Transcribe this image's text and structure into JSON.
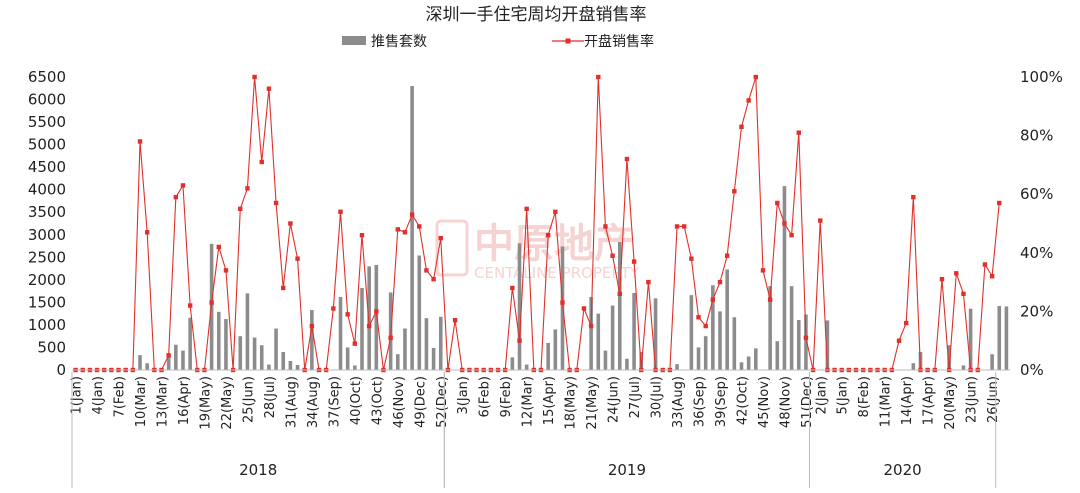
{
  "chart_data": {
    "type": "bar+line",
    "title": "深圳一手住宅周均开盘销售率",
    "watermark": {
      "cn": "中原地产",
      "en": "CENTALINE PROPERTY"
    },
    "bar_series": {
      "name": "推售套数",
      "color": "#8c8c8c"
    },
    "line_series": {
      "name": "开盘销售率",
      "color": "#e0302b"
    },
    "y_left": {
      "min": 0,
      "max": 6500,
      "ticks": [
        "0",
        "500",
        "1000",
        "1500",
        "2000",
        "2500",
        "3000",
        "3500",
        "4000",
        "4500",
        "5000",
        "5500",
        "6000",
        "6500"
      ]
    },
    "y_right": {
      "min": 0,
      "max": 1,
      "ticks": [
        "0%",
        "20%",
        "40%",
        "60%",
        "80%",
        "100%"
      ]
    },
    "years": [
      {
        "label": "2018",
        "start": 0,
        "end": 52
      },
      {
        "label": "2019",
        "start": 52,
        "end": 103
      },
      {
        "label": "2020",
        "start": 103,
        "end": 129
      }
    ],
    "x_tick_labels": [
      {
        "i": 0,
        "label": "1(Jan)"
      },
      {
        "i": 3,
        "label": "4(Jan)"
      },
      {
        "i": 6,
        "label": "7(Feb)"
      },
      {
        "i": 9,
        "label": "10(Mar)"
      },
      {
        "i": 12,
        "label": "13(Mar)"
      },
      {
        "i": 15,
        "label": "16(Apr)"
      },
      {
        "i": 18,
        "label": "19(May)"
      },
      {
        "i": 21,
        "label": "22(May)"
      },
      {
        "i": 24,
        "label": "25(Jun)"
      },
      {
        "i": 27,
        "label": "28(Jul)"
      },
      {
        "i": 30,
        "label": "31(Aug)"
      },
      {
        "i": 33,
        "label": "34(Aug)"
      },
      {
        "i": 36,
        "label": "37(Sep)"
      },
      {
        "i": 39,
        "label": "40(Oct)"
      },
      {
        "i": 42,
        "label": "43(Oct)"
      },
      {
        "i": 45,
        "label": "46(Nov)"
      },
      {
        "i": 48,
        "label": "49(Dec)"
      },
      {
        "i": 51,
        "label": "52(Dec)"
      },
      {
        "i": 54,
        "label": "3(Jan)"
      },
      {
        "i": 57,
        "label": "6(Feb)"
      },
      {
        "i": 60,
        "label": "9(Feb)"
      },
      {
        "i": 63,
        "label": "12(Mar)"
      },
      {
        "i": 66,
        "label": "15(Apr)"
      },
      {
        "i": 69,
        "label": "18(May)"
      },
      {
        "i": 72,
        "label": "21(May)"
      },
      {
        "i": 75,
        "label": "24(Jun)"
      },
      {
        "i": 78,
        "label": "27(Jul)"
      },
      {
        "i": 81,
        "label": "30(Jul)"
      },
      {
        "i": 84,
        "label": "33(Aug)"
      },
      {
        "i": 87,
        "label": "36(Sep)"
      },
      {
        "i": 90,
        "label": "39(Sep)"
      },
      {
        "i": 93,
        "label": "42(Oct)"
      },
      {
        "i": 96,
        "label": "45(Nov)"
      },
      {
        "i": 99,
        "label": "48(Nov)"
      },
      {
        "i": 102,
        "label": "51(Dec)"
      },
      {
        "i": 104,
        "label": "2(Jan)"
      },
      {
        "i": 107,
        "label": "5(Jan)"
      },
      {
        "i": 110,
        "label": "8(Feb)"
      },
      {
        "i": 113,
        "label": "11(Mar)"
      },
      {
        "i": 116,
        "label": "14(Apr)"
      },
      {
        "i": 119,
        "label": "17(Apr)"
      },
      {
        "i": 122,
        "label": "20(May)"
      },
      {
        "i": 125,
        "label": "23(Jun)"
      },
      {
        "i": 128,
        "label": "26(Jun)"
      }
    ],
    "bars": [
      0,
      0,
      0,
      0,
      0,
      0,
      0,
      0,
      0,
      330,
      150,
      0,
      0,
      300,
      560,
      430,
      1160,
      0,
      0,
      2800,
      1290,
      1130,
      0,
      750,
      1700,
      720,
      550,
      120,
      920,
      400,
      200,
      110,
      0,
      1330,
      0,
      0,
      0,
      1620,
      500,
      100,
      1820,
      2300,
      2330,
      0,
      1720,
      350,
      920,
      6300,
      2540,
      1150,
      490,
      1180,
      0,
      0,
      0,
      0,
      0,
      0,
      0,
      0,
      0,
      280,
      2810,
      120,
      0,
      0,
      600,
      900,
      2740,
      0,
      0,
      0,
      1620,
      1250,
      430,
      1430,
      2840,
      250,
      1710,
      400,
      0,
      1590,
      0,
      0,
      130,
      0,
      1660,
      500,
      750,
      1880,
      1300,
      2230,
      1170,
      170,
      300,
      480,
      0,
      1860,
      640,
      4080,
      1860,
      1110,
      1230,
      0,
      0,
      1100,
      0,
      0,
      0,
      0,
      0,
      0,
      0,
      0,
      0,
      0,
      0,
      150,
      400,
      0,
      0,
      0,
      550,
      0,
      100,
      1360,
      0,
      0,
      350,
      1420,
      1410
    ],
    "rates": [
      0,
      0,
      0,
      0,
      0,
      0,
      0,
      0,
      0,
      0.78,
      0.47,
      0,
      0,
      0.05,
      0.59,
      0.63,
      0.22,
      0,
      0,
      0.23,
      0.42,
      0.34,
      0,
      0.55,
      0.62,
      1.0,
      0.71,
      0.96,
      0.57,
      0.28,
      0.5,
      0.38,
      0,
      0.15,
      0,
      0,
      0.21,
      0.54,
      0.19,
      0.09,
      0.46,
      0.15,
      0.2,
      0,
      0.11,
      0.48,
      0.47,
      0.53,
      0.49,
      0.34,
      0.31,
      0.45,
      0,
      0.17,
      0,
      0,
      0,
      0,
      0,
      0,
      0,
      0.28,
      0.1,
      0.55,
      0,
      0,
      0.46,
      0.54,
      0.23,
      0,
      0,
      0.21,
      0.15,
      1.0,
      0.49,
      0.39,
      0.26,
      0.72,
      0.37,
      0,
      0.3,
      0,
      0,
      0,
      0.49,
      0.49,
      0.38,
      0.18,
      0.15,
      0.24,
      0.3,
      0.39,
      0.61,
      0.83,
      0.92,
      1.0,
      0.34,
      0.24,
      0.57,
      0.5,
      0.46,
      0.81,
      0.11,
      0,
      0.51,
      0,
      0,
      0,
      0,
      0,
      0,
      0,
      0,
      0,
      0,
      0.1,
      0.16,
      0.59,
      0,
      0,
      0,
      0.31,
      0,
      0.33,
      0.26,
      0,
      0,
      0.36,
      0.32,
      0.57
    ]
  }
}
